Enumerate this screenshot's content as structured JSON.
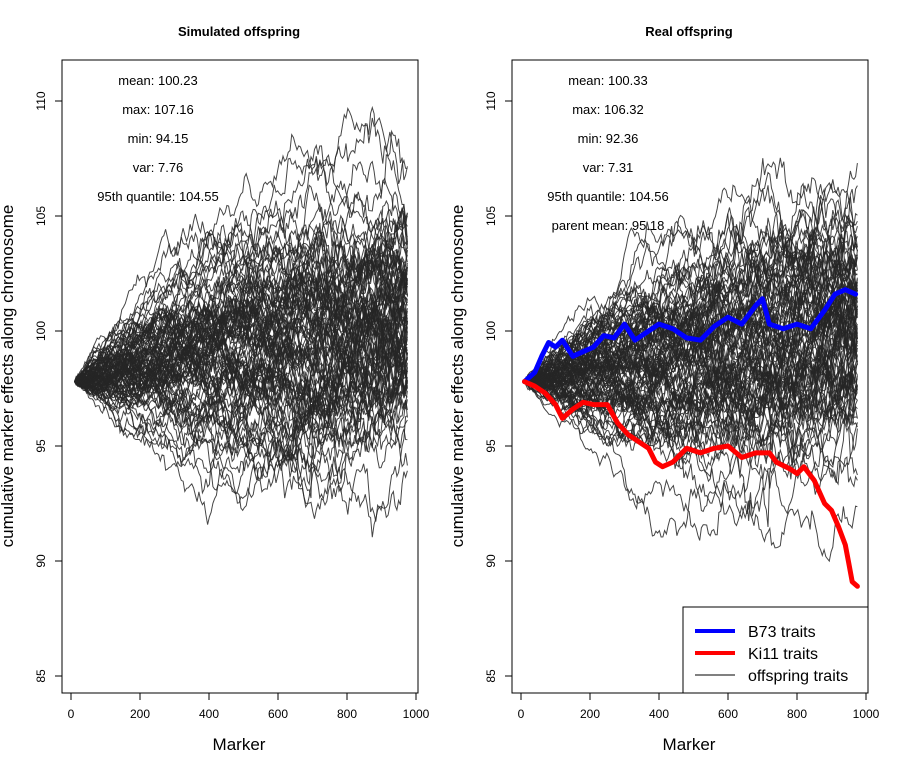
{
  "chart_data": [
    {
      "type": "line",
      "title": "Simulated offspring",
      "xlabel": "Marker",
      "ylabel": "cumulative marker effects along chromosome",
      "xlim": [
        0,
        1000
      ],
      "ylim": [
        85,
        110
      ],
      "x_ticks": [
        0,
        200,
        400,
        600,
        800,
        1000
      ],
      "y_ticks": [
        85,
        90,
        95,
        100,
        105,
        110
      ],
      "grid": false,
      "stats": [
        "mean: 100.23",
        "max: 107.16",
        "min: 94.15",
        "var: 7.76",
        "95th quantile: 104.55"
      ],
      "start": {
        "x": 10,
        "y": 97.8
      },
      "end": {
        "x": 975
      },
      "series_stats": {
        "mean": 100.23,
        "max": 107.16,
        "min": 94.15,
        "var": 7.76,
        "q95": 104.55
      },
      "mid_extremes": {
        "x": 700,
        "min": 92.3,
        "max": 104.0
      },
      "n_lines": 100,
      "line_color": "#262626",
      "series": []
    },
    {
      "type": "line",
      "title": "Real offspring",
      "xlabel": "Marker",
      "ylabel": "cumulative marker effects along chromosome",
      "xlim": [
        0,
        1000
      ],
      "ylim": [
        85,
        110
      ],
      "x_ticks": [
        0,
        200,
        400,
        600,
        800,
        1000
      ],
      "y_ticks": [
        85,
        90,
        95,
        100,
        105,
        110
      ],
      "grid": false,
      "stats": [
        "mean: 100.33",
        "max: 106.32",
        "min: 92.36",
        "var: 7.31",
        "95th quantile: 104.56",
        "parent mean: 95.18"
      ],
      "start": {
        "x": 10,
        "y": 97.8
      },
      "end": {
        "x": 975
      },
      "series_stats": {
        "mean": 100.33,
        "max": 106.32,
        "min": 92.36,
        "var": 7.31,
        "q95": 104.56
      },
      "mid_extremes": {
        "x": 720,
        "min": 91.0,
        "max": 102.5
      },
      "n_lines": 100,
      "line_color": "#262626",
      "legend": {
        "position": "bottom-right",
        "entries": [
          {
            "label": "B73 traits",
            "color": "#0000ff"
          },
          {
            "label": "Ki11 traits",
            "color": "#ff0000"
          },
          {
            "label": "offspring traits",
            "color": "#000000"
          }
        ]
      },
      "series": [
        {
          "name": "B73 traits",
          "color": "#0000ff",
          "x": [
            10,
            40,
            60,
            80,
            100,
            120,
            150,
            180,
            210,
            240,
            270,
            300,
            330,
            360,
            400,
            440,
            480,
            520,
            560,
            600,
            640,
            680,
            700,
            720,
            760,
            800,
            840,
            880,
            910,
            940,
            970
          ],
          "y": [
            97.8,
            98.2,
            98.9,
            99.5,
            99.3,
            99.6,
            98.9,
            99.1,
            99.3,
            99.8,
            99.7,
            100.3,
            99.6,
            99.9,
            100.3,
            100.1,
            99.7,
            99.6,
            100.2,
            100.6,
            100.3,
            101.1,
            101.4,
            100.3,
            100.1,
            100.3,
            100.1,
            100.9,
            101.6,
            101.8,
            101.6
          ]
        },
        {
          "name": "Ki11 traits",
          "color": "#ff0000",
          "x": [
            10,
            40,
            70,
            100,
            120,
            150,
            180,
            210,
            250,
            280,
            310,
            340,
            370,
            390,
            410,
            440,
            480,
            520,
            560,
            600,
            640,
            680,
            720,
            740,
            780,
            800,
            820,
            850,
            880,
            900,
            920,
            940,
            950,
            960,
            975
          ],
          "y": [
            97.8,
            97.6,
            97.3,
            96.8,
            96.2,
            96.6,
            96.9,
            96.8,
            96.8,
            96.0,
            95.5,
            95.2,
            94.9,
            94.3,
            94.1,
            94.3,
            94.9,
            94.7,
            94.9,
            95.0,
            94.5,
            94.7,
            94.7,
            94.3,
            94.0,
            93.8,
            94.1,
            93.5,
            92.5,
            92.2,
            91.5,
            90.7,
            89.9,
            89.1,
            88.9
          ]
        }
      ]
    }
  ]
}
